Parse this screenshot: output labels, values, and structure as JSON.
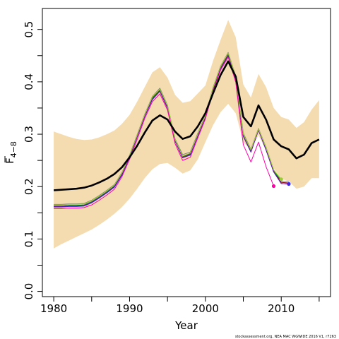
{
  "chart_data": {
    "type": "line",
    "xlabel": "Year",
    "ylabel_main": "F",
    "ylabel_sub": "4−8",
    "xlim": [
      1978.5,
      2016.5
    ],
    "ylim": [
      -0.01,
      0.54
    ],
    "x_ticks": [
      1980,
      1990,
      2000,
      2010
    ],
    "x_tick_labels": [
      "1980",
      "1990",
      "2000",
      "2010"
    ],
    "y_ticks": [
      0.0,
      0.1,
      0.2,
      0.3,
      0.4,
      0.5
    ],
    "y_tick_labels": [
      "0.0",
      "0.1",
      "0.2",
      "0.3",
      "0.4",
      "0.5"
    ],
    "grid": false,
    "band": {
      "color": "#f5dcb0",
      "x": [
        1980,
        1981,
        1982,
        1983,
        1984,
        1985,
        1986,
        1987,
        1988,
        1989,
        1990,
        1991,
        1992,
        1993,
        1994,
        1995,
        1996,
        1997,
        1998,
        1999,
        2000,
        2001,
        2002,
        2003,
        2004,
        2005,
        2006,
        2007,
        2008,
        2009,
        2010,
        2011,
        2012,
        2013,
        2014,
        2015
      ],
      "upper": [
        0.305,
        0.3,
        0.295,
        0.291,
        0.289,
        0.29,
        0.294,
        0.3,
        0.307,
        0.32,
        0.337,
        0.362,
        0.39,
        0.418,
        0.428,
        0.408,
        0.375,
        0.36,
        0.363,
        0.378,
        0.393,
        0.44,
        0.48,
        0.518,
        0.485,
        0.395,
        0.37,
        0.415,
        0.39,
        0.35,
        0.333,
        0.328,
        0.312,
        0.323,
        0.347,
        0.365
      ],
      "lower": [
        0.082,
        0.09,
        0.097,
        0.104,
        0.111,
        0.118,
        0.127,
        0.137,
        0.148,
        0.161,
        0.177,
        0.196,
        0.216,
        0.233,
        0.243,
        0.245,
        0.236,
        0.225,
        0.231,
        0.252,
        0.285,
        0.317,
        0.342,
        0.358,
        0.34,
        0.285,
        0.27,
        0.298,
        0.27,
        0.235,
        0.215,
        0.21,
        0.196,
        0.2,
        0.216,
        0.216
      ]
    },
    "series": [
      {
        "color": "#000000",
        "width": 2.6,
        "x": [
          1980,
          1981,
          1982,
          1983,
          1984,
          1985,
          1986,
          1987,
          1988,
          1989,
          1990,
          1991,
          1992,
          1993,
          1994,
          1995,
          1996,
          1997,
          1998,
          1999,
          2000,
          2001,
          2002,
          2003,
          2004,
          2005,
          2006,
          2007,
          2008,
          2009,
          2010,
          2011,
          2012,
          2013,
          2014,
          2015
        ],
        "values": [
          0.193,
          0.194,
          0.195,
          0.196,
          0.198,
          0.202,
          0.208,
          0.215,
          0.224,
          0.237,
          0.256,
          0.278,
          0.303,
          0.326,
          0.336,
          0.328,
          0.305,
          0.291,
          0.296,
          0.315,
          0.34,
          0.378,
          0.413,
          0.439,
          0.41,
          0.333,
          0.315,
          0.355,
          0.328,
          0.29,
          0.277,
          0.271,
          0.254,
          0.261,
          0.283,
          0.29
        ]
      },
      {
        "color": "#808080",
        "width": 1,
        "endpoint": false,
        "x": [
          1980,
          1981,
          1982,
          1983,
          1984,
          1985,
          1986,
          1987,
          1988,
          1989,
          1990,
          1991,
          1992,
          1993,
          1994,
          1995,
          1996,
          1997,
          1998,
          1999,
          2000,
          2001,
          2002,
          2003,
          2004,
          2005,
          2006,
          2007,
          2008,
          2009,
          2010,
          2011
        ],
        "values": [
          0.166,
          0.166,
          0.167,
          0.167,
          0.168,
          0.174,
          0.183,
          0.193,
          0.204,
          0.227,
          0.26,
          0.299,
          0.338,
          0.372,
          0.388,
          0.355,
          0.291,
          0.261,
          0.266,
          0.302,
          0.336,
          0.389,
          0.43,
          0.456,
          0.41,
          0.302,
          0.271,
          0.311,
          0.275,
          0.232,
          0.21,
          0.21
        ]
      },
      {
        "color": "#8b0000",
        "width": 1,
        "endpoint": false,
        "x": [
          1980,
          1981,
          1982,
          1983,
          1984,
          1985,
          1986,
          1987,
          1988,
          1989,
          1990,
          1991,
          1992,
          1993,
          1994,
          1995,
          1996,
          1997,
          1998,
          1999,
          2000,
          2001,
          2002,
          2003,
          2004,
          2005,
          2006,
          2007,
          2008,
          2009,
          2010,
          2011
        ],
        "values": [
          0.163,
          0.163,
          0.164,
          0.164,
          0.165,
          0.171,
          0.18,
          0.19,
          0.201,
          0.224,
          0.258,
          0.297,
          0.336,
          0.369,
          0.384,
          0.352,
          0.289,
          0.257,
          0.263,
          0.299,
          0.334,
          0.386,
          0.427,
          0.452,
          0.406,
          0.298,
          0.268,
          0.31,
          0.272,
          0.23,
          0.208,
          0.207
        ]
      },
      {
        "color": "#2a2aff",
        "width": 1,
        "endpoint": true,
        "x": [
          1980,
          1981,
          1982,
          1983,
          1984,
          1985,
          1986,
          1987,
          1988,
          1989,
          1990,
          1991,
          1992,
          1993,
          1994,
          1995,
          1996,
          1997,
          1998,
          1999,
          2000,
          2001,
          2002,
          2003,
          2004,
          2005,
          2006,
          2007,
          2008,
          2009,
          2010,
          2011
        ],
        "values": [
          0.161,
          0.161,
          0.162,
          0.162,
          0.163,
          0.169,
          0.178,
          0.188,
          0.199,
          0.222,
          0.256,
          0.295,
          0.334,
          0.366,
          0.382,
          0.35,
          0.287,
          0.255,
          0.26,
          0.297,
          0.332,
          0.385,
          0.425,
          0.45,
          0.404,
          0.296,
          0.266,
          0.308,
          0.27,
          0.228,
          0.206,
          0.205
        ]
      },
      {
        "color": "#00a000",
        "width": 1,
        "endpoint": false,
        "x": [
          1980,
          1981,
          1982,
          1983,
          1984,
          1985,
          1986,
          1987,
          1988,
          1989,
          1990,
          1991,
          1992,
          1993,
          1994,
          1995,
          1996,
          1997,
          1998,
          1999,
          2000,
          2001,
          2002,
          2003,
          2004,
          2005,
          2006,
          2007,
          2008,
          2009,
          2010
        ],
        "values": [
          0.163,
          0.163,
          0.164,
          0.164,
          0.165,
          0.171,
          0.18,
          0.19,
          0.201,
          0.224,
          0.257,
          0.296,
          0.335,
          0.368,
          0.383,
          0.351,
          0.288,
          0.256,
          0.262,
          0.298,
          0.333,
          0.386,
          0.426,
          0.451,
          0.405,
          0.297,
          0.267,
          0.309,
          0.271,
          0.229,
          0.212
        ]
      },
      {
        "color": "#6a0dad",
        "width": 1,
        "endpoint": false,
        "x": [
          1980,
          1981,
          1982,
          1983,
          1984,
          1985,
          1986,
          1987,
          1988,
          1989,
          1990,
          1991,
          1992,
          1993,
          1994,
          1995,
          1996,
          1997,
          1998,
          1999,
          2000,
          2001,
          2002,
          2003,
          2004,
          2005,
          2006,
          2007,
          2008,
          2009,
          2010,
          2011
        ],
        "values": [
          0.162,
          0.162,
          0.163,
          0.163,
          0.164,
          0.17,
          0.179,
          0.189,
          0.2,
          0.223,
          0.256,
          0.295,
          0.334,
          0.367,
          0.382,
          0.35,
          0.287,
          0.255,
          0.261,
          0.297,
          0.332,
          0.385,
          0.425,
          0.45,
          0.404,
          0.296,
          0.266,
          0.308,
          0.27,
          0.228,
          0.206,
          0.205
        ]
      },
      {
        "color": "#9acd32",
        "width": 1,
        "endpoint": true,
        "x": [
          1980,
          1981,
          1982,
          1983,
          1984,
          1985,
          1986,
          1987,
          1988,
          1989,
          1990,
          1991,
          1992,
          1993,
          1994,
          1995,
          1996,
          1997,
          1998,
          1999,
          2000,
          2001,
          2002,
          2003,
          2004,
          2005,
          2006,
          2007,
          2008,
          2009,
          2010
        ],
        "values": [
          0.165,
          0.165,
          0.166,
          0.166,
          0.167,
          0.173,
          0.182,
          0.192,
          0.203,
          0.226,
          0.259,
          0.298,
          0.337,
          0.371,
          0.386,
          0.354,
          0.29,
          0.258,
          0.264,
          0.3,
          0.335,
          0.388,
          0.429,
          0.455,
          0.409,
          0.3,
          0.27,
          0.31,
          0.274,
          0.232,
          0.214
        ]
      },
      {
        "color": "#ff00aa",
        "width": 1,
        "endpoint": true,
        "x": [
          1980,
          1981,
          1982,
          1983,
          1984,
          1985,
          1986,
          1987,
          1988,
          1989,
          1990,
          1991,
          1992,
          1993,
          1994,
          1995,
          1996,
          1997,
          1998,
          1999,
          2000,
          2001,
          2002,
          2003,
          2004,
          2005,
          2006,
          2007,
          2008,
          2009
        ],
        "values": [
          0.158,
          0.158,
          0.159,
          0.159,
          0.16,
          0.165,
          0.174,
          0.184,
          0.195,
          0.219,
          0.252,
          0.29,
          0.33,
          0.362,
          0.377,
          0.346,
          0.282,
          0.25,
          0.256,
          0.293,
          0.329,
          0.382,
          0.422,
          0.447,
          0.399,
          0.28,
          0.247,
          0.285,
          0.238,
          0.201
        ]
      }
    ],
    "footnote": "stockassessment.org, NEA MAC WGWIDE 2016 V1, r7263"
  }
}
